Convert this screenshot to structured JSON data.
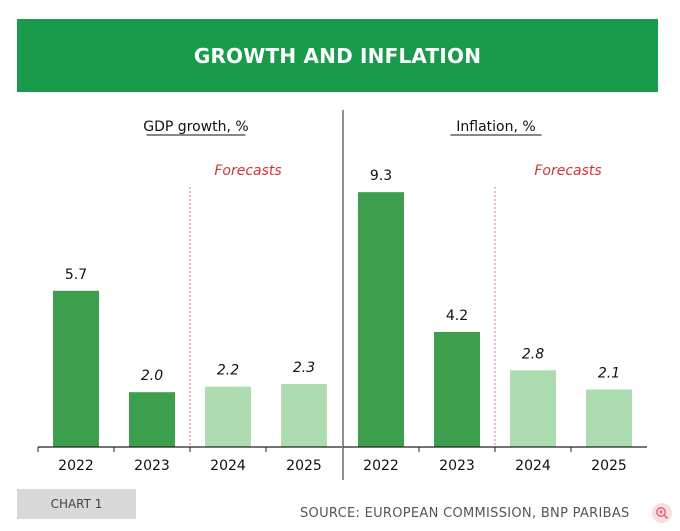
{
  "header": {
    "title": "GROWTH AND INFLATION"
  },
  "colors": {
    "banner": "#1a9b4b",
    "actual_bar": "#3d9f4d",
    "forecast_bar": "#acdcb0",
    "forecast_line": "#e0707a",
    "forecast_text": "#d0353a"
  },
  "chart_data": [
    {
      "type": "bar",
      "title": "GDP growth, %",
      "categories": [
        "2022",
        "2023",
        "2024",
        "2025"
      ],
      "values": [
        5.7,
        2.0,
        2.2,
        2.3
      ],
      "value_labels": [
        "5.7",
        "2.0",
        "2.2",
        "2.3"
      ],
      "forecast": [
        false,
        false,
        true,
        true
      ],
      "forecast_label": "Forecasts",
      "ylim": [
        0,
        11
      ]
    },
    {
      "type": "bar",
      "title": "Inflation, %",
      "categories": [
        "2022",
        "2023",
        "2024",
        "2025"
      ],
      "values": [
        9.3,
        4.2,
        2.8,
        2.1
      ],
      "value_labels": [
        "9.3",
        "4.2",
        "2.8",
        "2.1"
      ],
      "forecast": [
        false,
        false,
        true,
        true
      ],
      "forecast_label": "Forecasts",
      "ylim": [
        0,
        11
      ]
    }
  ],
  "footer": {
    "chart_tag": "CHART 1",
    "source": "SOURCE: EUROPEAN COMMISSION, BNP PARIBAS",
    "zoom_icon": "zoom-in-icon"
  }
}
